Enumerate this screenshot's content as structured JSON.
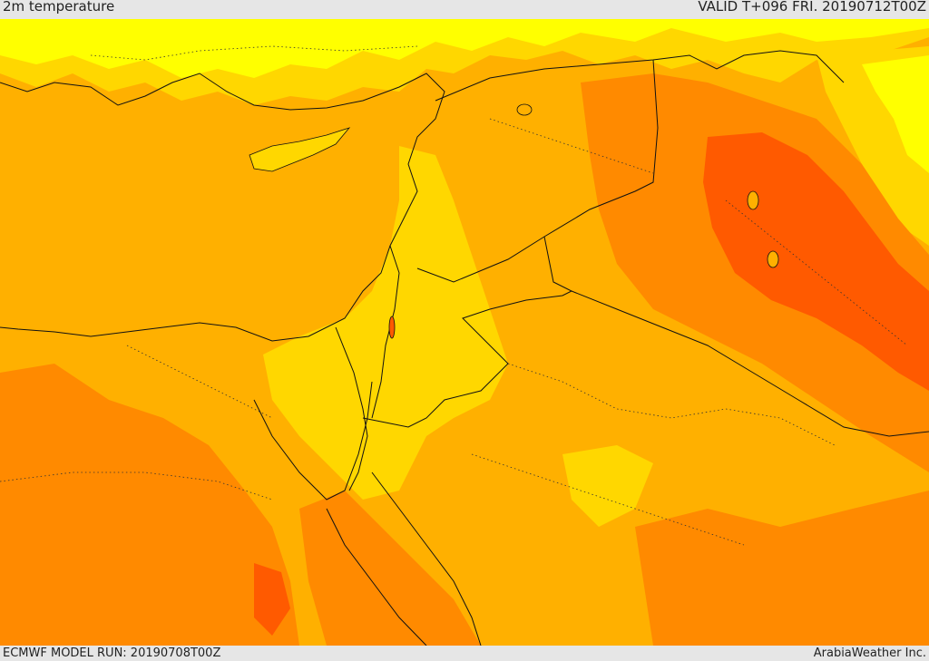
{
  "header": {
    "title": "2m temperature",
    "valid": "VALID T+096 FRI. 20190712T00Z"
  },
  "footer": {
    "model_run": "ECMWF MODEL RUN: 20190708T00Z",
    "brand": "ArabiaWeather Inc."
  },
  "colors": {
    "sea": "#ffb000",
    "cool_yellow": "#ffff00",
    "warm_yellow": "#ffd700",
    "orange_light": "#ffb000",
    "orange": "#ff8a00",
    "orange_red": "#ff5a00",
    "borders": "#111111"
  },
  "map": {
    "region": "Eastern Mediterranean / Middle East",
    "variable": "2m temperature"
  }
}
